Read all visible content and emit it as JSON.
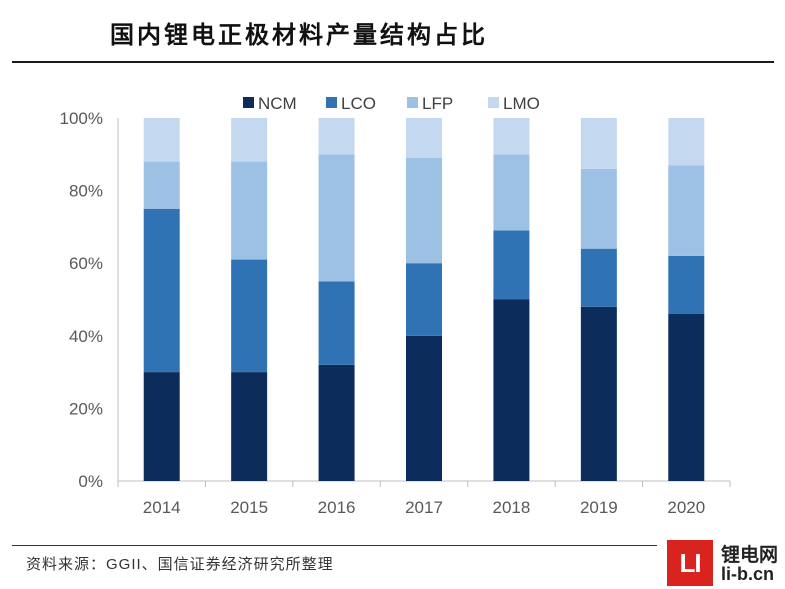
{
  "chart_data": {
    "type": "bar",
    "stacked": true,
    "title": "国内锂电正极材料产量结构占比",
    "categories": [
      "2014",
      "2015",
      "2016",
      "2017",
      "2018",
      "2019",
      "2020"
    ],
    "series": [
      {
        "name": "NCM",
        "color": "#0c2c5c",
        "values": [
          30,
          30,
          32,
          40,
          50,
          48,
          46
        ]
      },
      {
        "name": "LCO",
        "color": "#2f73b5",
        "values": [
          45,
          31,
          23,
          20,
          19,
          16,
          16
        ]
      },
      {
        "name": "LFP",
        "color": "#9cc1e5",
        "values": [
          13,
          27,
          35,
          29,
          21,
          22,
          25
        ]
      },
      {
        "name": "LMO",
        "color": "#c4d9ef",
        "values": [
          12,
          12,
          10,
          11,
          10,
          14,
          13
        ]
      }
    ],
    "ylim": [
      0,
      100
    ],
    "y_ticks": [
      0,
      20,
      40,
      60,
      80,
      100
    ],
    "y_tick_labels": [
      "0%",
      "20%",
      "40%",
      "60%",
      "80%",
      "100%"
    ],
    "xlabel": "",
    "ylabel": "",
    "legend_position": "top",
    "grid": false
  },
  "source": "资料来源：GGII、国信证券经济研究所整理",
  "logo": {
    "mark": "LI",
    "name": "锂电网",
    "domain": "li-b.cn",
    "color": "#d8231f"
  }
}
